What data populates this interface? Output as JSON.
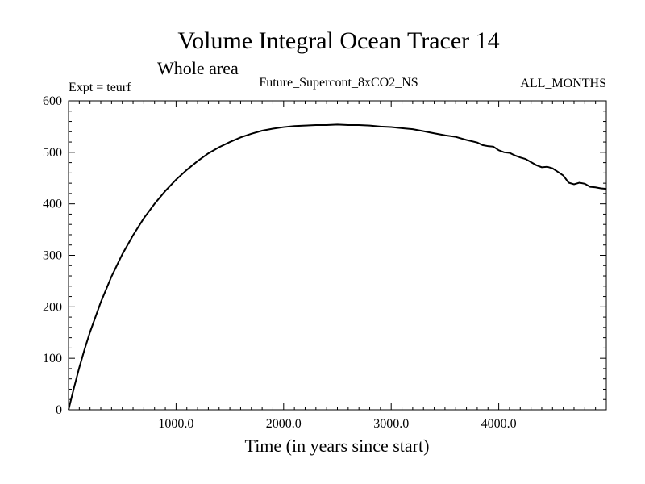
{
  "chart_data": {
    "type": "line",
    "title": "Volume Integral Ocean Tracer 14",
    "subtitle": "Whole area",
    "annotations": {
      "experiment": "Expt = teurf",
      "run_name": "Future_Supercont_8xCO2_NS",
      "months": "ALL_MONTHS"
    },
    "xlabel": "Time (in years since start)",
    "ylabel": "",
    "xlim": [
      0,
      5000
    ],
    "ylim": [
      0,
      600
    ],
    "x_tick_values": [
      1000,
      2000,
      3000,
      4000
    ],
    "x_tick_labels": [
      "1000.0",
      "2000.0",
      "3000.0",
      "4000.0"
    ],
    "y_tick_values": [
      0,
      100,
      200,
      300,
      400,
      500,
      600
    ],
    "y_tick_labels": [
      "0",
      "100",
      "200",
      "300",
      "400",
      "500",
      "600"
    ],
    "grid": false,
    "legend": "none",
    "line_color": "#000000",
    "series": [
      {
        "x": [
          0,
          50,
          100,
          150,
          200,
          300,
          400,
          500,
          600,
          700,
          800,
          900,
          1000,
          1100,
          1200,
          1300,
          1400,
          1500,
          1600,
          1700,
          1800,
          1900,
          2000,
          2100,
          2200,
          2300,
          2400,
          2500,
          2600,
          2700,
          2800,
          2900,
          3000,
          3100,
          3200,
          3300,
          3400,
          3500,
          3600,
          3700,
          3800,
          3850,
          3900,
          3950,
          4000,
          4050,
          4100,
          4150,
          4200,
          4250,
          4300,
          4350,
          4400,
          4450,
          4500,
          4550,
          4600,
          4650,
          4700,
          4750,
          4800,
          4850,
          4900,
          4950,
          5000
        ],
        "y": [
          0,
          42,
          82,
          118,
          151,
          209,
          259,
          302,
          339,
          372,
          400,
          425,
          447,
          466,
          483,
          498,
          510,
          520,
          529,
          536,
          542,
          546,
          549,
          551,
          552,
          553,
          553,
          554,
          553,
          553,
          552,
          550,
          549,
          547,
          545,
          541,
          537,
          533,
          530,
          524,
          519,
          514,
          512,
          511,
          504,
          500,
          499,
          494,
          490,
          487,
          481,
          475,
          471,
          472,
          469,
          462,
          455,
          441,
          438,
          441,
          439,
          433,
          432,
          430,
          429
        ]
      }
    ]
  }
}
